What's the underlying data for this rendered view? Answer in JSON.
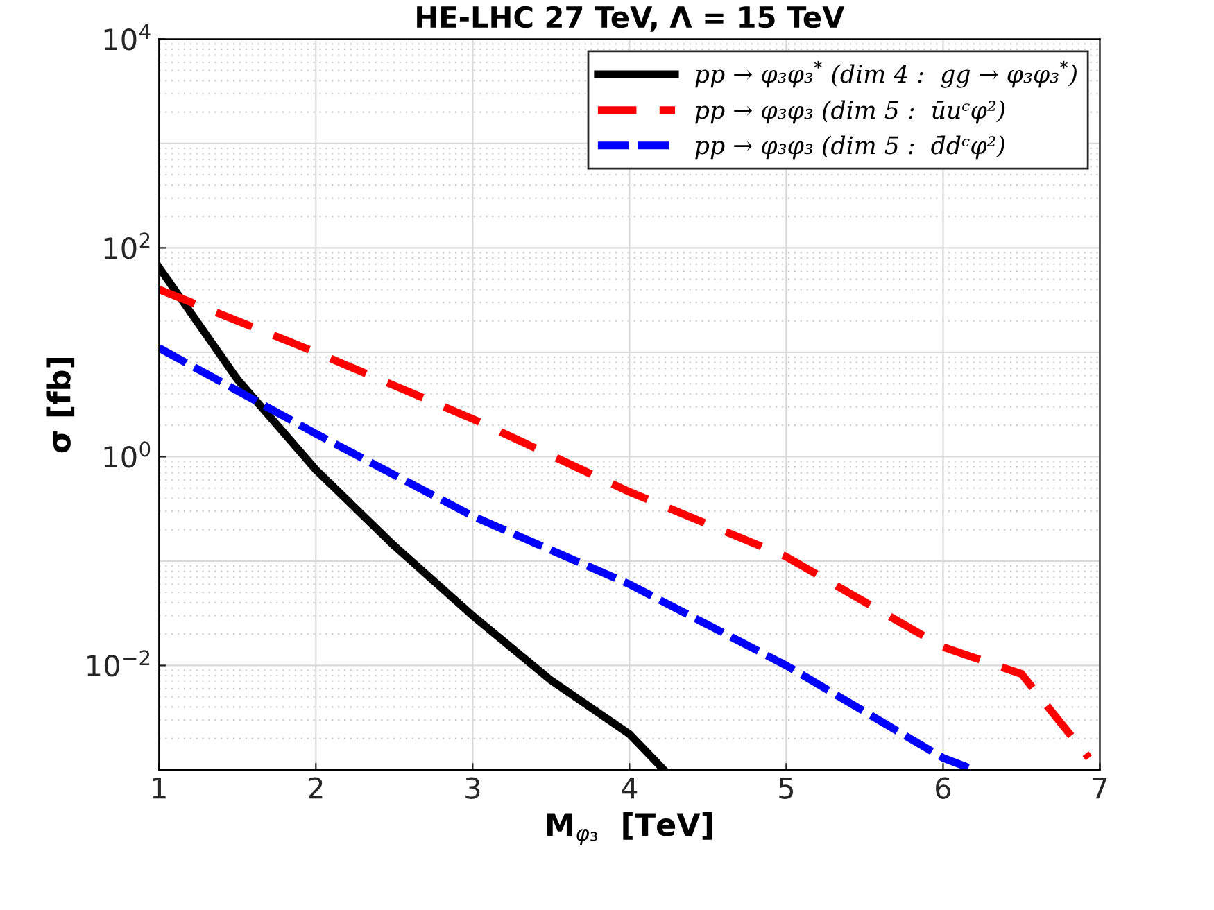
{
  "chart_data": {
    "type": "line",
    "title": "HE-LHC 27 TeV, Λ = 15 TeV",
    "xlabel": "M$_{φ₃}$  [TeV]",
    "ylabel": "σ [fb]",
    "log": "y",
    "grid": true,
    "legend": "top right",
    "xlim": [
      1,
      7
    ],
    "xticks": [
      1,
      2,
      3,
      4,
      5,
      6,
      7
    ],
    "ylim": [
      0.001,
      10000
    ],
    "yticks": [
      {
        "value": 0.01,
        "label": "10$^{−2}$"
      },
      {
        "value": 1,
        "label": "10$^{0}$"
      },
      {
        "value": 100,
        "label": "10$^{2}$"
      },
      {
        "value": 10000,
        "label": "10$^{4}$"
      }
    ],
    "series": [
      {
        "name": "pp → φ₃φ₃$^{*}$ (dim 4 :  gg → φ₃φ₃$^{*}$)",
        "color": "#000000",
        "line_style": "solid",
        "x": [
          1,
          1.5,
          2,
          2.5,
          3,
          3.5,
          4,
          4.22
        ],
        "values": [
          65,
          5.5,
          0.75,
          0.14,
          0.03,
          0.0072,
          0.0022,
          0.001
        ]
      },
      {
        "name": "pp → φ₃φ₃ (dim 5 :  ūuᶜφ²)",
        "color": "#ff0000",
        "line_style": "dashed",
        "x": [
          1,
          2,
          3,
          4,
          5,
          6,
          6.5,
          6.93
        ],
        "values": [
          40,
          10,
          2.3,
          0.46,
          0.11,
          0.015,
          0.0083,
          0.0013
        ]
      },
      {
        "name": "pp → φ₃φ₃ (dim 5 :  d̄dᶜφ²)",
        "color": "#0000ff",
        "line_style": "dashdot",
        "x": [
          1,
          2,
          3,
          4,
          5,
          6,
          6.2
        ],
        "values": [
          11,
          1.66,
          0.27,
          0.06,
          0.01,
          0.0013,
          0.001
        ]
      }
    ]
  }
}
